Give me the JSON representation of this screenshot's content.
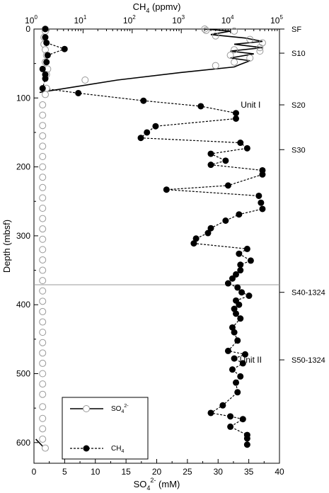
{
  "chart_data": {
    "type": "scatter",
    "axes": {
      "bottom": {
        "label_main": "SO",
        "label_sub": "4",
        "label_sup": "2-",
        "label_tail": " (mM)",
        "ticks": [
          0,
          5,
          10,
          15,
          20,
          25,
          30,
          35,
          40
        ],
        "range": [
          0,
          40
        ]
      },
      "top": {
        "label_main": "CH",
        "label_sub": "4",
        "label_tail": " (ppmv)",
        "scale": "log",
        "ticks": [
          1,
          10,
          100,
          1000,
          10000,
          100000
        ],
        "tick_labels": [
          "10",
          "10",
          "10",
          "10",
          "10",
          "10"
        ],
        "tick_exps": [
          "0",
          "1",
          "2",
          "3",
          "4",
          "5"
        ],
        "range": [
          1,
          100000
        ]
      },
      "left": {
        "label": "Depth (mbsf)",
        "ticks": [
          0,
          100,
          200,
          300,
          400,
          500,
          600
        ],
        "range": [
          0,
          630
        ],
        "inverted": true
      }
    },
    "hline_depth": 371,
    "right_labels": [
      {
        "text": "SF",
        "depth": 0
      },
      {
        "text": "S10",
        "depth": 35
      },
      {
        "text": "S20",
        "depth": 110
      },
      {
        "text": "S30",
        "depth": 175
      },
      {
        "text": "S40-1324",
        "depth": 382
      },
      {
        "text": "S50-1324",
        "depth": 480
      }
    ],
    "units": [
      {
        "text": "Unit I",
        "depth": 110,
        "x_so4": 33
      },
      {
        "text": "Unit II",
        "depth": 480,
        "x_so4": 33
      }
    ],
    "legend": [
      {
        "text_main": "SO",
        "text_sub": "4",
        "text_sup": "2-",
        "style": "solid",
        "marker": "open-circle"
      },
      {
        "text_main": "CH",
        "text_sub": "4",
        "text_sup": "",
        "style": "dashed",
        "marker": "filled-circle"
      }
    ],
    "series": [
      {
        "name": "SO4 (open circles)",
        "axis": "top",
        "points": [
          [
            1.7,
            0
          ],
          [
            1.7,
            3
          ],
          [
            1.6,
            12
          ],
          [
            1.6,
            22
          ],
          [
            1.7,
            30
          ],
          [
            1.8,
            38
          ],
          [
            1.7,
            48
          ],
          [
            1.9,
            58
          ],
          [
            1.8,
            66
          ],
          [
            11,
            74
          ],
          [
            1.8,
            86
          ],
          [
            1.7,
            95
          ],
          [
            1.5,
            110
          ],
          [
            1.5,
            125
          ],
          [
            1.5,
            140
          ],
          [
            1.5,
            155
          ],
          [
            1.5,
            170
          ],
          [
            1.5,
            185
          ],
          [
            1.5,
            200
          ],
          [
            1.5,
            215
          ],
          [
            1.5,
            230
          ],
          [
            1.5,
            245
          ],
          [
            1.5,
            260
          ],
          [
            1.5,
            275
          ],
          [
            1.5,
            290
          ],
          [
            1.5,
            305
          ],
          [
            1.5,
            320
          ],
          [
            1.5,
            335
          ],
          [
            1.5,
            350
          ],
          [
            1.5,
            365
          ],
          [
            1.5,
            380
          ],
          [
            1.5,
            395
          ],
          [
            1.5,
            410
          ],
          [
            1.5,
            425
          ],
          [
            1.5,
            440
          ],
          [
            1.5,
            455
          ],
          [
            1.5,
            470
          ],
          [
            1.5,
            485
          ],
          [
            1.5,
            500
          ],
          [
            1.5,
            515
          ],
          [
            1.5,
            530
          ],
          [
            1.5,
            548
          ],
          [
            1.5,
            565
          ],
          [
            1.5,
            580
          ],
          [
            1.5,
            595
          ],
          [
            1.7,
            608
          ]
        ],
        "ch4_points": [
          [
            3000,
            0
          ],
          [
            3200,
            2
          ],
          [
            12000,
            3
          ],
          [
            5000,
            10
          ],
          [
            25000,
            15
          ],
          [
            45000,
            20
          ],
          [
            40000,
            27
          ],
          [
            12000,
            30
          ],
          [
            40000,
            32
          ],
          [
            10000,
            38
          ],
          [
            25000,
            42
          ],
          [
            12000,
            48
          ],
          [
            5000,
            53
          ]
        ],
        "line_ch4": [
          [
            3000,
            0
          ],
          [
            10000,
            3
          ],
          [
            4000,
            8
          ],
          [
            20000,
            13
          ],
          [
            45000,
            18
          ],
          [
            12000,
            22
          ],
          [
            45000,
            27
          ],
          [
            10000,
            32
          ],
          [
            30000,
            36
          ],
          [
            10000,
            42
          ],
          [
            25000,
            46
          ],
          [
            15000,
            52
          ],
          [
            12000,
            55
          ],
          [
            1000,
            63
          ],
          [
            50,
            74
          ],
          [
            1.3,
            92
          ]
        ],
        "line_so4_bottom": [
          [
            0.3,
            595
          ],
          [
            1.7,
            608
          ]
        ]
      },
      {
        "name": "CH4 (filled circles)",
        "axis": "top",
        "points": [
          [
            1.7,
            0
          ],
          [
            1.7,
            12
          ],
          [
            1.8,
            20
          ],
          [
            4.2,
            29
          ],
          [
            1.9,
            38
          ],
          [
            1.8,
            48
          ],
          [
            1.5,
            58
          ],
          [
            1.7,
            66
          ],
          [
            1.7,
            72
          ],
          [
            1.5,
            86
          ],
          [
            8,
            93
          ],
          [
            170,
            104
          ],
          [
            2500,
            112
          ],
          [
            13000,
            122
          ],
          [
            13000,
            130
          ],
          [
            300,
            141
          ],
          [
            200,
            150
          ],
          [
            150,
            158
          ],
          [
            16000,
            165
          ],
          [
            22000,
            173
          ],
          [
            4000,
            181
          ],
          [
            8000,
            191
          ],
          [
            4000,
            197
          ],
          [
            45000,
            205
          ],
          [
            45000,
            211
          ],
          [
            9000,
            227
          ],
          [
            500,
            233
          ],
          [
            38000,
            242
          ],
          [
            42000,
            252
          ],
          [
            45000,
            261
          ],
          [
            15000,
            269
          ],
          [
            8000,
            278
          ],
          [
            4000,
            289
          ],
          [
            3500,
            296
          ],
          [
            2000,
            304
          ],
          [
            1800,
            311
          ],
          [
            22000,
            319
          ],
          [
            15000,
            326
          ],
          [
            26000,
            336
          ],
          [
            16000,
            342
          ],
          [
            16000,
            350
          ],
          [
            13000,
            356
          ],
          [
            11000,
            362
          ],
          [
            9000,
            369
          ],
          [
            14000,
            375
          ],
          [
            17000,
            382
          ],
          [
            24000,
            387
          ],
          [
            13000,
            394
          ],
          [
            15000,
            400
          ],
          [
            12000,
            406
          ],
          [
            13000,
            413
          ],
          [
            16000,
            420
          ],
          [
            11000,
            433
          ],
          [
            12000,
            440
          ],
          [
            14000,
            452
          ],
          [
            9000,
            467
          ],
          [
            20000,
            472
          ],
          [
            12000,
            478
          ],
          [
            18000,
            485
          ],
          [
            11000,
            494
          ],
          [
            16000,
            504
          ],
          [
            13000,
            513
          ],
          [
            14000,
            527
          ],
          [
            7000,
            546
          ],
          [
            4000,
            557
          ],
          [
            10000,
            562
          ],
          [
            18000,
            566
          ],
          [
            10000,
            577
          ],
          [
            22000,
            589
          ],
          [
            22000,
            594
          ],
          [
            22000,
            603
          ]
        ]
      }
    ]
  }
}
